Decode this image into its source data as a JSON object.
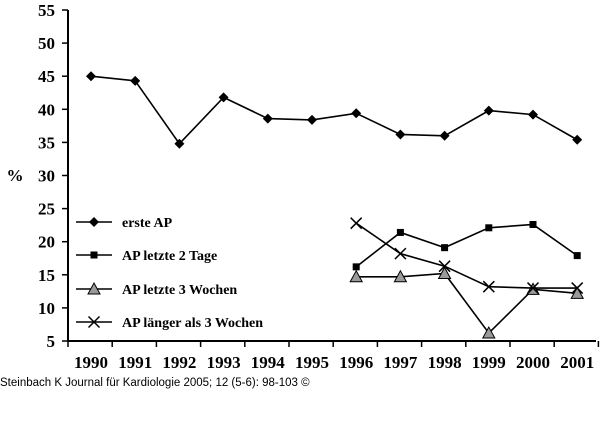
{
  "chart_data": {
    "type": "line",
    "title": "",
    "xlabel": "",
    "ylabel": "%",
    "ylim": [
      5,
      55
    ],
    "yticks": [
      5,
      10,
      15,
      20,
      25,
      30,
      35,
      40,
      45,
      50,
      55
    ],
    "categories": [
      "1990",
      "1991",
      "1992",
      "1993",
      "1994",
      "1995",
      "1996",
      "1997",
      "1998",
      "1999",
      "2000",
      "2001"
    ],
    "grid": false,
    "legend_position": "bottom-left",
    "series": [
      {
        "name": "erste AP",
        "marker": "diamond",
        "values": [
          45.0,
          44.3,
          34.8,
          41.8,
          38.6,
          38.4,
          39.4,
          36.2,
          36.0,
          39.8,
          39.2,
          35.4
        ]
      },
      {
        "name": "AP letzte 2 Tage",
        "marker": "square",
        "values": [
          null,
          null,
          null,
          null,
          null,
          null,
          16.2,
          21.4,
          19.1,
          22.1,
          22.6,
          17.9
        ]
      },
      {
        "name": "AP letzte 3 Wochen",
        "marker": "triangle",
        "values": [
          null,
          null,
          null,
          null,
          null,
          null,
          14.7,
          14.7,
          15.2,
          6.2,
          12.8,
          12.2
        ]
      },
      {
        "name": "AP länger als 3 Wochen",
        "marker": "cross",
        "values": [
          null,
          null,
          null,
          null,
          null,
          null,
          22.8,
          18.2,
          16.3,
          13.2,
          13.0,
          13.0
        ]
      }
    ]
  },
  "caption": "Steinbach K Journal für Kardiologie 2005; 12 (5-6): 98-103",
  "copyright_symbol": "©"
}
